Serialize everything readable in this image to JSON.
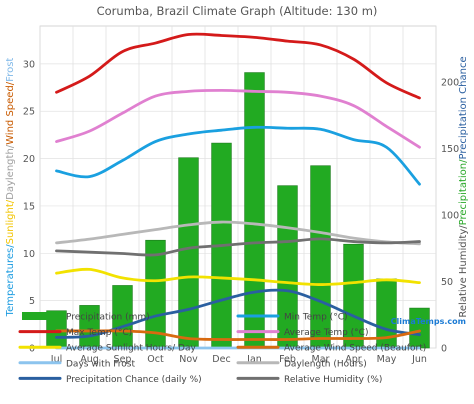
{
  "chart_data": {
    "type": "bar",
    "title": "Corumba, Brazil Climate Graph (Altitude: 130 m)",
    "categories": [
      "Jul",
      "Aug",
      "Sep",
      "Oct",
      "Nov",
      "Dec",
      "Jan",
      "Feb",
      "Mar",
      "Apr",
      "May",
      "Jun"
    ],
    "left_axis": {
      "ticks": [
        "0",
        "5",
        "10",
        "15",
        "20",
        "25",
        "30"
      ],
      "ylim": [
        0,
        34
      ],
      "label_parts": [
        {
          "text": "Temperatures/",
          "color": "#1a9be0"
        },
        {
          "text": "Sunlight/",
          "color": "#f2c400"
        },
        {
          "text": "Daylength/",
          "color": "#a0a0a0"
        },
        {
          "text": "Wind Speed/",
          "color": "#c85a00"
        },
        {
          "text": "Frost",
          "color": "#7fb8e8"
        }
      ]
    },
    "right_axis": {
      "ticks": [
        "0",
        "50",
        "100",
        "150",
        "200"
      ],
      "ylim": [
        0,
        242
      ],
      "label_parts": [
        {
          "text": "Relative Humidity/",
          "color": "#555555"
        },
        {
          "text": "Precipitation/",
          "color": "#2aa82a"
        },
        {
          "text": "Precipitation Chance",
          "color": "#2a5fa0"
        }
      ]
    },
    "bars": {
      "name": "Precipitation (mm)",
      "color": "#22aa22",
      "axis": "right",
      "values": [
        28,
        32,
        47,
        81,
        143,
        154,
        207,
        122,
        137,
        78,
        52,
        30
      ]
    },
    "series": [
      {
        "name": "Max Temp (°C)",
        "color": "#d41a1a",
        "axis": "left",
        "values": [
          27,
          28.7,
          31.3,
          32.2,
          33.1,
          33,
          32.8,
          32.4,
          32,
          30.5,
          28,
          26.4
        ]
      },
      {
        "name": "Average Temp (°C)",
        "color": "#e080d0",
        "axis": "left",
        "values": [
          21.8,
          22.9,
          24.8,
          26.6,
          27.1,
          27.2,
          27.1,
          27,
          26.6,
          25.6,
          23.4,
          21.2
        ]
      },
      {
        "name": "Min Temp (°C)",
        "color": "#1aa0e0",
        "axis": "left",
        "values": [
          18.7,
          18.1,
          19.8,
          21.8,
          22.6,
          23,
          23.3,
          23.2,
          23.1,
          22,
          21.2,
          17.3
        ]
      },
      {
        "name": "Daylength (Hours)",
        "color": "#b8b8b8",
        "axis": "left",
        "values": [
          11.1,
          11.5,
          12,
          12.5,
          13,
          13.3,
          13.1,
          12.7,
          12.2,
          11.6,
          11.2,
          11
        ]
      },
      {
        "name": "Relative Humidity (%)",
        "color": "#707070",
        "axis": "right",
        "values": [
          73,
          72,
          71,
          70,
          75,
          77,
          79,
          80,
          82,
          80,
          79,
          80
        ]
      },
      {
        "name": "Average Sunlight Hours/ Day",
        "color": "#f2e200",
        "axis": "left",
        "values": [
          7.9,
          8.3,
          7.4,
          7.1,
          7.5,
          7.4,
          7.2,
          6.9,
          6.7,
          6.9,
          7.2,
          6.9
        ]
      },
      {
        "name": "Precipitation Chance (daily %)",
        "color": "#2a5fa0",
        "axis": "right",
        "values": [
          8,
          9,
          16,
          24,
          29,
          36,
          42,
          43,
          35,
          24,
          14,
          10
        ]
      },
      {
        "name": "Average Wind Speed (Beaufort)",
        "color": "#d86a10",
        "axis": "left",
        "values": [
          1.8,
          1.8,
          1.8,
          1.6,
          1,
          0.9,
          0.9,
          0.9,
          1,
          1,
          1.1,
          1.8
        ]
      },
      {
        "name": "Days with Frost",
        "color": "#8cc4ee",
        "axis": "left",
        "values": [
          0,
          0,
          0,
          0,
          0,
          0,
          0,
          0,
          0,
          0,
          0,
          0
        ]
      }
    ],
    "legend": [
      {
        "label": "Precipitation (mm)",
        "color": "#22aa22",
        "kind": "box"
      },
      {
        "label": "Min Temp (°C)",
        "color": "#1aa0e0",
        "kind": "line"
      },
      {
        "label": "Max Temp (°C)",
        "color": "#d41a1a",
        "kind": "line"
      },
      {
        "label": "Average Temp (°C)",
        "color": "#e080d0",
        "kind": "line"
      },
      {
        "label": "Average Sunlight Hours/ Day",
        "color": "#f2e200",
        "kind": "line"
      },
      {
        "label": "Average Wind Speed (Beaufort)",
        "color": "#d86a10",
        "kind": "line"
      },
      {
        "label": "Days with Frost",
        "color": "#8cc4ee",
        "kind": "line"
      },
      {
        "label": "Daylength (Hours)",
        "color": "#b8b8b8",
        "kind": "line"
      },
      {
        "label": "Precipitation Chance (daily %)",
        "color": "#2a5fa0",
        "kind": "line"
      },
      {
        "label": "Relative Humidity (%)",
        "color": "#707070",
        "kind": "line"
      }
    ],
    "legend_placement": "bottom",
    "grid": true,
    "watermark": "ClimaTemps.com"
  }
}
